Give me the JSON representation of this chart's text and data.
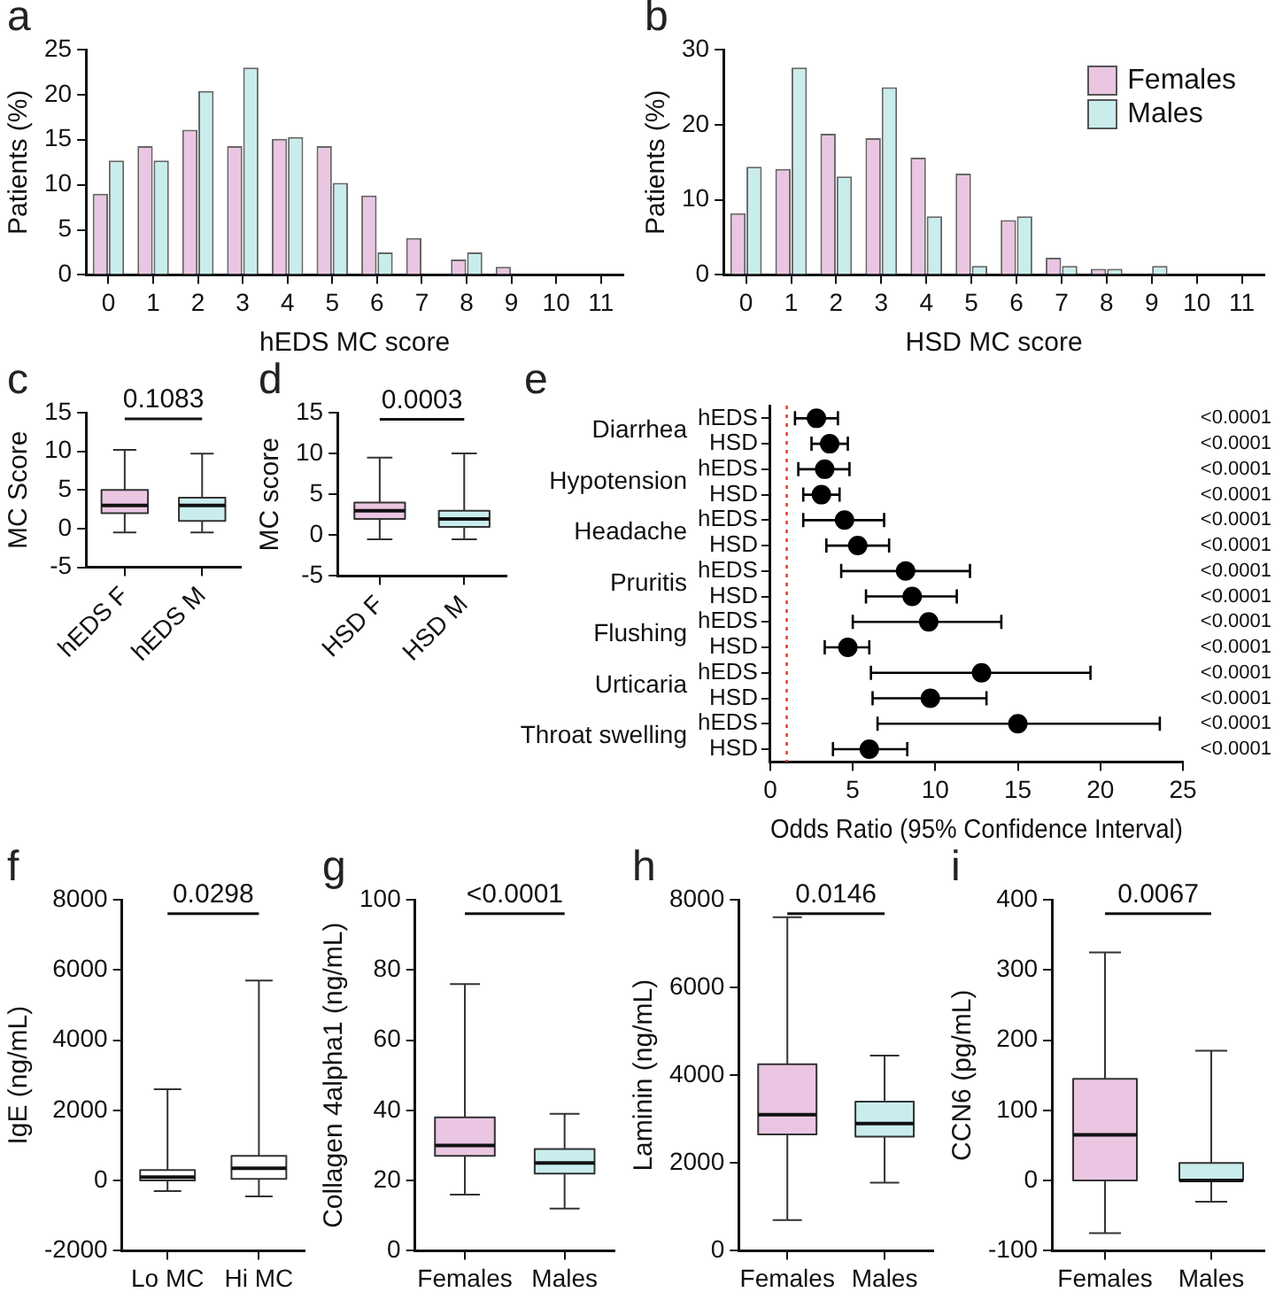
{
  "chart_data": [
    {
      "type": "bar",
      "title": "a",
      "xlabel": "hEDS MC score",
      "ylabel": "Patients (%)",
      "categories": [
        "0",
        "1",
        "2",
        "3",
        "4",
        "5",
        "6",
        "7",
        "8",
        "9",
        "10",
        "11"
      ],
      "ylim": [
        0,
        25
      ],
      "yticks": [
        0,
        5,
        10,
        15,
        20,
        25
      ],
      "series": [
        {
          "color": "#eac6e2",
          "values": [
            9,
            14.3,
            16.1,
            14.3,
            15.1,
            14.3,
            8.8,
            4.1,
            1.7,
            0.9,
            0,
            0
          ]
        },
        {
          "color": "#c9eded",
          "values": [
            12.7,
            12.7,
            20.4,
            23,
            15.3,
            10.2,
            2.5,
            0,
            2.5,
            0,
            0,
            0
          ]
        }
      ]
    },
    {
      "type": "bar",
      "title": "b",
      "xlabel": "HSD MC score",
      "ylabel": "Patients (%)",
      "categories": [
        "0",
        "1",
        "2",
        "3",
        "4",
        "5",
        "6",
        "7",
        "8",
        "9",
        "10",
        "11"
      ],
      "ylim": [
        0,
        30
      ],
      "yticks": [
        0,
        10,
        20,
        30
      ],
      "legend": "top right",
      "series": [
        {
          "name": "Females",
          "color": "#eac6e2",
          "values": [
            8.2,
            14.1,
            18.8,
            18.2,
            15.6,
            13.5,
            7.3,
            2.3,
            0.8,
            0,
            0,
            0
          ]
        },
        {
          "name": "Males",
          "color": "#c9eded",
          "values": [
            14.4,
            27.6,
            13.1,
            25,
            7.8,
            1.2,
            7.8,
            1.2,
            0.8,
            1.2,
            0,
            0
          ]
        }
      ]
    },
    {
      "type": "box",
      "title": "c",
      "ylabel": "MC Score",
      "categories": [
        "hEDS F",
        "hEDS M"
      ],
      "ylim": [
        -5,
        15
      ],
      "yticks": [
        -5,
        0,
        5,
        10,
        15
      ],
      "colors": [
        "#eac6e2",
        "#c9eded"
      ],
      "annotations": [
        "0.1083"
      ],
      "boxes": [
        {
          "low": -0.5,
          "q1": 2,
          "median": 3,
          "q3": 5,
          "high": 10.2
        },
        {
          "low": -0.5,
          "q1": 1,
          "median": 3,
          "q3": 4,
          "high": 9.7
        }
      ]
    },
    {
      "type": "box",
      "title": "d",
      "ylabel": "MC score",
      "categories": [
        "HSD F",
        "HSD M"
      ],
      "ylim": [
        -5,
        15
      ],
      "yticks": [
        -5,
        0,
        5,
        10,
        15
      ],
      "colors": [
        "#eac6e2",
        "#c9eded"
      ],
      "annotations": [
        "0.0003"
      ],
      "boxes": [
        {
          "low": -0.5,
          "q1": 2,
          "median": 3,
          "q3": 4,
          "high": 9.5
        },
        {
          "low": -0.5,
          "q1": 1,
          "median": 2,
          "q3": 3,
          "high": 10
        }
      ]
    },
    {
      "type": "scatter",
      "title": "e",
      "orientation": "horizontal",
      "xlabel": "Odds Ratio (95% Confidence Interval)",
      "xlim": [
        0,
        25
      ],
      "xticks": [
        0,
        5,
        10,
        15,
        20,
        25
      ],
      "marker": "circle",
      "color": "#000000",
      "categories": [
        "hEDS",
        "HSD",
        "hEDS",
        "HSD",
        "hEDS",
        "HSD",
        "hEDS",
        "HSD",
        "hEDS",
        "HSD",
        "hEDS",
        "HSD",
        "hEDS",
        "HSD"
      ],
      "values": [
        2.8,
        3.6,
        3.3,
        3.1,
        4.5,
        5.3,
        8.2,
        8.6,
        9.6,
        4.7,
        12.8,
        9.7,
        15.0,
        6.0
      ],
      "errors": [
        [
          1.5,
          4.1
        ],
        [
          2.5,
          4.7
        ],
        [
          1.7,
          4.8
        ],
        [
          2.0,
          4.2
        ],
        [
          2.0,
          6.9
        ],
        [
          3.4,
          7.2
        ],
        [
          4.3,
          12.1
        ],
        [
          5.8,
          11.3
        ],
        [
          5.0,
          14.0
        ],
        [
          3.3,
          6.0
        ],
        [
          6.1,
          19.4
        ],
        [
          6.2,
          13.1
        ],
        [
          6.5,
          23.6
        ],
        [
          3.8,
          8.3
        ]
      ],
      "value_labels": [
        "<0.0001",
        "<0.0001",
        "<0.0001",
        "<0.0001",
        "<0.0001",
        "<0.0001",
        "<0.0001",
        "<0.0001",
        "<0.0001",
        "<0.0001",
        "<0.0001",
        "<0.0001",
        "<0.0001",
        "<0.0001"
      ],
      "annotations": [
        "Diarrhea",
        "Hypotension",
        "Headache",
        "Pruritis",
        "Flushing",
        "Urticaria",
        "Throat swelling"
      ],
      "ref_lines": [
        {
          "axis": "x",
          "value": 1,
          "color": "#e03030",
          "line_style": "dotted"
        }
      ]
    },
    {
      "type": "box",
      "title": "f",
      "ylabel": "IgE (ng/mL)",
      "categories": [
        "Lo MC",
        "Hi MC"
      ],
      "ylim": [
        -2000,
        8000
      ],
      "yticks": [
        -2000,
        0,
        2000,
        4000,
        6000,
        8000
      ],
      "colors": [
        "#ffffff",
        "#ffffff"
      ],
      "annotations": [
        "0.0298"
      ],
      "boxes": [
        {
          "low": -300,
          "q1": 0,
          "median": 100,
          "q3": 300,
          "high": 2600
        },
        {
          "low": -450,
          "q1": 50,
          "median": 350,
          "q3": 700,
          "high": 5700
        }
      ]
    },
    {
      "type": "box",
      "title": "g",
      "ylabel": "Collagen 4alpha1 (ng/mL)",
      "categories": [
        "Females",
        "Males"
      ],
      "ylim": [
        0,
        100
      ],
      "yticks": [
        0,
        20,
        40,
        60,
        80,
        100
      ],
      "colors": [
        "#eac6e2",
        "#c9eded"
      ],
      "annotations": [
        "<0.0001"
      ],
      "boxes": [
        {
          "low": 16,
          "q1": 27,
          "median": 30,
          "q3": 38,
          "high": 76
        },
        {
          "low": 12,
          "q1": 22,
          "median": 25,
          "q3": 29,
          "high": 39
        }
      ]
    },
    {
      "type": "box",
      "title": "h",
      "ylabel": "Laminin (ng/mL)",
      "categories": [
        "Females",
        "Males"
      ],
      "ylim": [
        0,
        8000
      ],
      "yticks": [
        0,
        2000,
        4000,
        6000,
        8000
      ],
      "colors": [
        "#eac6e2",
        "#c9eded"
      ],
      "annotations": [
        "0.0146"
      ],
      "boxes": [
        {
          "low": 700,
          "q1": 2650,
          "median": 3100,
          "q3": 4250,
          "high": 7600
        },
        {
          "low": 1550,
          "q1": 2600,
          "median": 2900,
          "q3": 3400,
          "high": 4450
        }
      ]
    },
    {
      "type": "box",
      "title": "i",
      "ylabel": "CCN6 (pg/mL)",
      "categories": [
        "Females",
        "Males"
      ],
      "ylim": [
        -100,
        400
      ],
      "yticks": [
        -100,
        0,
        100,
        200,
        300,
        400
      ],
      "colors": [
        "#eac6e2",
        "#c9eded"
      ],
      "annotations": [
        "0.0067"
      ],
      "boxes": [
        {
          "low": -75,
          "q1": 0,
          "median": 65,
          "q3": 145,
          "high": 325
        },
        {
          "low": -30,
          "q1": 0,
          "median": 0,
          "q3": 25,
          "high": 185
        }
      ]
    }
  ]
}
